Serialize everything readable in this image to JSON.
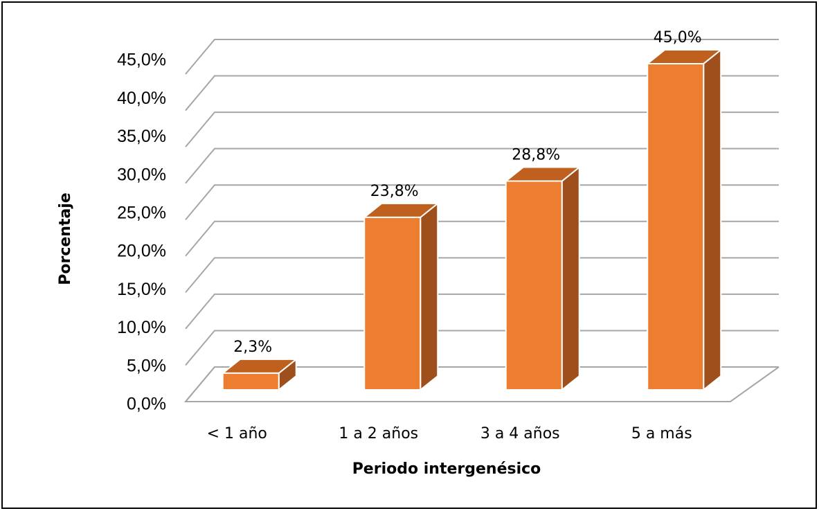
{
  "chart_data": {
    "type": "bar3d",
    "x_label": "Periodo intergenésico",
    "y_label": "Porcentaje",
    "categories": [
      "< 1 año",
      "1 a 2 años",
      "3 a 4 años",
      "5 a más"
    ],
    "values": [
      2.3,
      23.8,
      28.8,
      45.0
    ],
    "value_labels": [
      "2,3%",
      "23,8%",
      "28,8%",
      "45,0%"
    ],
    "color": "#ed7d31",
    "ylim": [
      0,
      45
    ],
    "yticks": [
      {
        "value": 0,
        "label": "0,0%"
      },
      {
        "value": 5,
        "label": "5,0%"
      },
      {
        "value": 10,
        "label": "10,0%"
      },
      {
        "value": 15,
        "label": "15,0%"
      },
      {
        "value": 20,
        "label": "20,0%"
      },
      {
        "value": 25,
        "label": "25,0%"
      },
      {
        "value": 30,
        "label": "30,0%"
      },
      {
        "value": 35,
        "label": "35,0%"
      },
      {
        "value": 40,
        "label": "40,0%"
      },
      {
        "value": 45,
        "label": "45,0%"
      }
    ],
    "grid": true
  }
}
